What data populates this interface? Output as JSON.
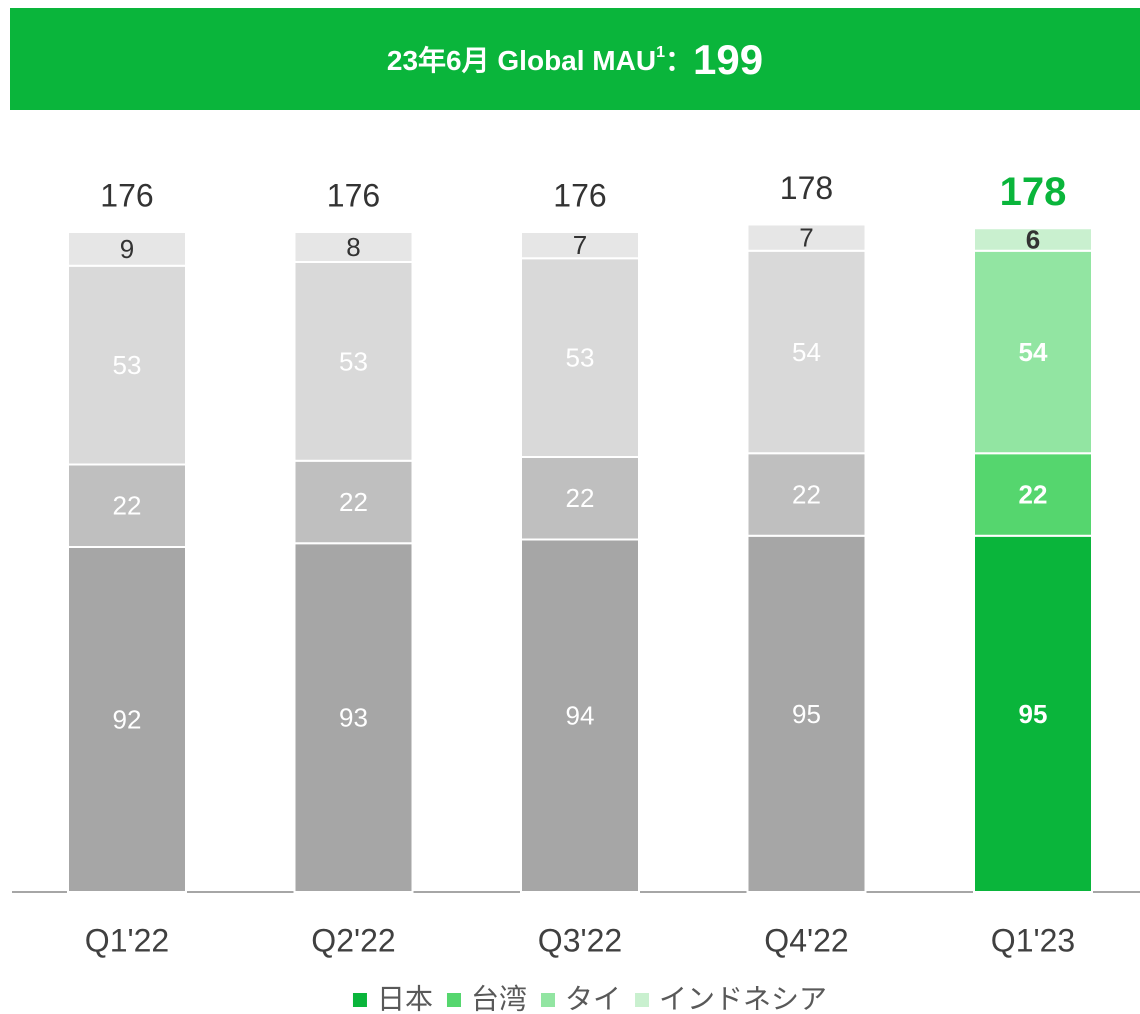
{
  "banner": {
    "text": "23年6月 Global MAU",
    "footnote": "1",
    "separator": "：",
    "value": 199
  },
  "chart_data": {
    "type": "stacked_bar",
    "categories": [
      "Q1'22",
      "Q2'22",
      "Q3'22",
      "Q4'22",
      "Q1'23"
    ],
    "highlight": "Q1'23",
    "series": [
      {
        "name": "日本",
        "color": "#0ab53b",
        "muted_color": "#a6a6a6",
        "values": [
          92,
          93,
          94,
          95,
          95
        ]
      },
      {
        "name": "台湾",
        "color": "#55d66e",
        "muted_color": "#bfbfbf",
        "values": [
          22,
          22,
          22,
          22,
          22
        ]
      },
      {
        "name": "タイ",
        "color": "#92e5a2",
        "muted_color": "#d9d9d9",
        "values": [
          53,
          53,
          53,
          54,
          54
        ]
      },
      {
        "name": "インドネシア",
        "color": "#c9f0cf",
        "muted_color": "#e6e6e6",
        "values": [
          9,
          8,
          7,
          7,
          6
        ]
      }
    ],
    "totals": [
      176,
      176,
      176,
      178,
      178
    ]
  }
}
